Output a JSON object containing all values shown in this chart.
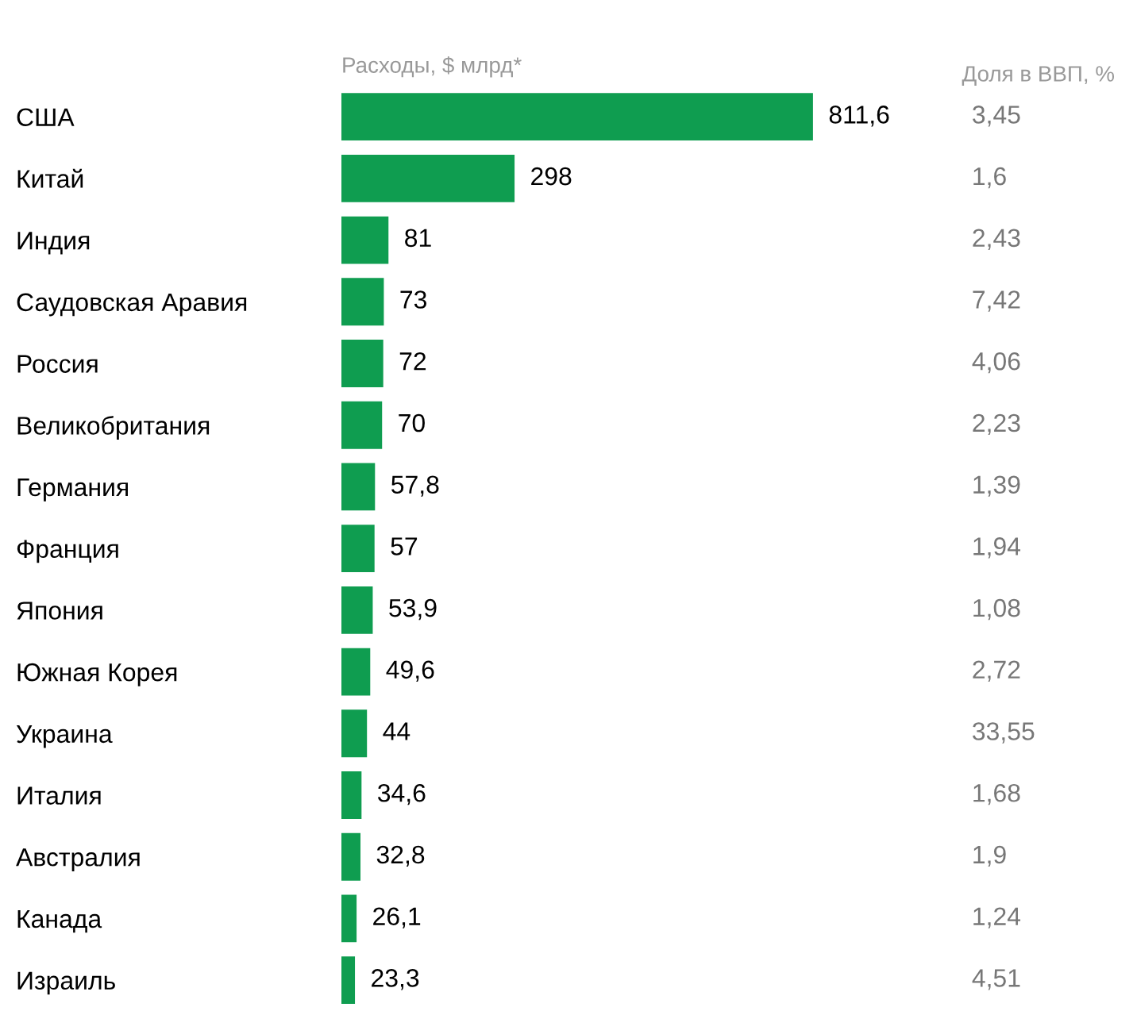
{
  "chart_data": {
    "type": "bar",
    "orientation": "horizontal",
    "xlabel": "Расходы, $ млрд*",
    "categories": [
      "США",
      "Китай",
      "Индия",
      "Саудовская Аравия",
      "Россия",
      "Великобритания",
      "Германия",
      "Франция",
      "Япония",
      "Южная Корея",
      "Украина",
      "Италия",
      "Австралия",
      "Канада",
      "Израиль"
    ],
    "values": [
      811.6,
      298,
      81,
      73,
      72,
      70,
      57.8,
      57,
      53.9,
      49.6,
      44,
      34.6,
      32.8,
      26.1,
      23.3
    ],
    "value_labels": [
      "811,6",
      "298",
      "81",
      "73",
      "72",
      "70",
      "57,8",
      "57",
      "53,9",
      "49,6",
      "44",
      "34,6",
      "32,8",
      "26,1",
      "23,3"
    ],
    "color": "#0f9d50",
    "annotations": [
      "Доля в ВВП, %",
      "3,45",
      "1,6",
      "2,43",
      "7,42",
      "4,06",
      "2,23",
      "1,39",
      "1,94",
      "1,08",
      "2,72",
      "33,55",
      "1,68",
      "1,9",
      "1,24",
      "4,51"
    ]
  }
}
